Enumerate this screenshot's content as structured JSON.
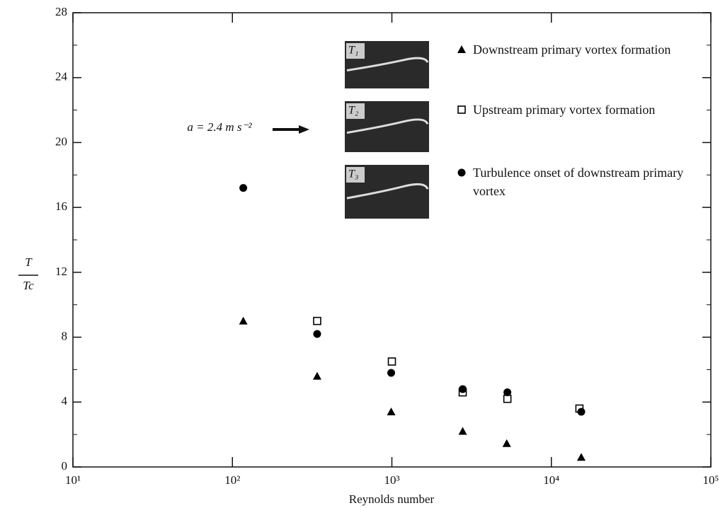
{
  "chart_data": {
    "type": "scatter",
    "xlabel": "Reynolds number",
    "ylabel": {
      "numerator": "T",
      "denominator": "Tc"
    },
    "xscale": "log",
    "xlim": [
      10,
      100000
    ],
    "xticks": [
      {
        "value": 10,
        "label": "10¹"
      },
      {
        "value": 100,
        "label": "10²"
      },
      {
        "value": 1000,
        "label": "10³"
      },
      {
        "value": 10000,
        "label": "10⁴"
      },
      {
        "value": 100000,
        "label": "10⁵"
      }
    ],
    "ylim": [
      0,
      28
    ],
    "yticks": [
      0,
      4,
      8,
      12,
      16,
      20,
      24,
      28
    ],
    "series": [
      {
        "name": "Downstream primary vortex formation",
        "marker": "triangle",
        "color": "#000000",
        "x": [
          117,
          340,
          990,
          2780,
          5250,
          15400
        ],
        "values": [
          9.0,
          5.6,
          3.4,
          2.2,
          1.45,
          0.6
        ]
      },
      {
        "name": "Upstream primary vortex formation",
        "marker": "square",
        "color": "#000000",
        "x": [
          340,
          1000,
          2780,
          5300,
          15000
        ],
        "values": [
          9.0,
          6.5,
          4.6,
          4.2,
          3.6
        ]
      },
      {
        "name": "Turbulence onset of downstream primary vortex",
        "marker": "circle",
        "color": "#000000",
        "x": [
          117,
          340,
          990,
          2780,
          5300,
          15400
        ],
        "values": [
          17.2,
          8.2,
          5.8,
          4.8,
          4.6,
          3.4
        ]
      }
    ],
    "annotations": {
      "acceleration": "a = 2.4 m s⁻²",
      "insets": [
        "T₁",
        "T₂",
        "T₃"
      ]
    }
  }
}
